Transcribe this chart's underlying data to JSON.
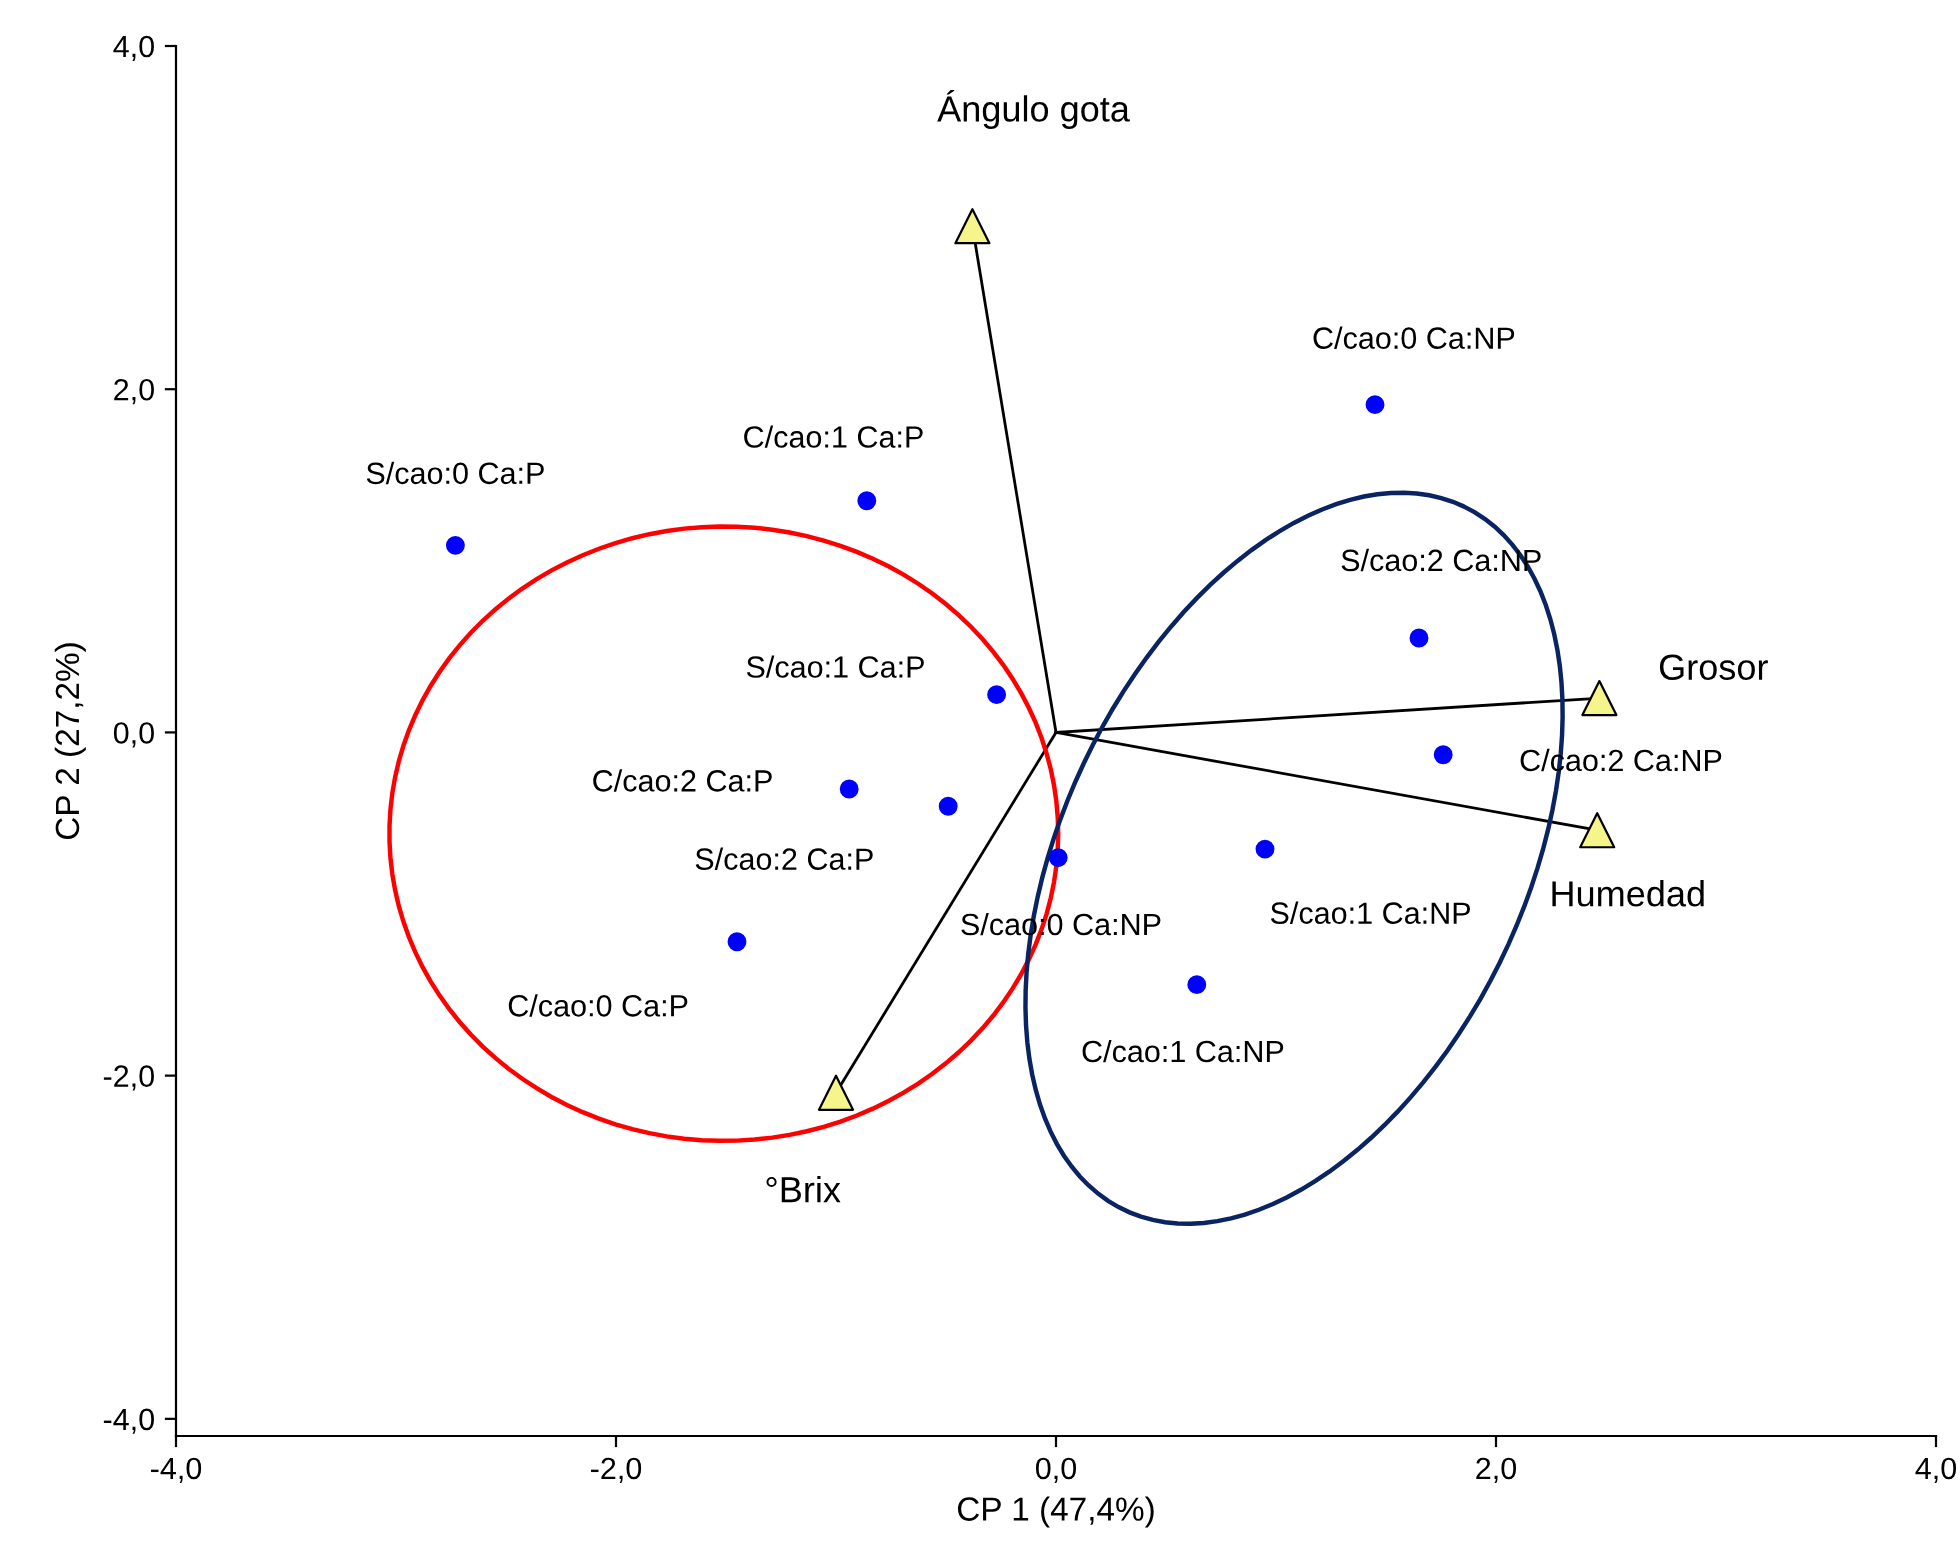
{
  "chart_data": {
    "type": "scatter",
    "xlabel": "CP 1 (47,4%)",
    "ylabel": "CP 2 (27,2%)",
    "xlim": [
      -4,
      4
    ],
    "ylim": [
      -4.1,
      4
    ],
    "xticks": [
      {
        "value": -4,
        "label": "-4,0"
      },
      {
        "value": -2,
        "label": "-2,0"
      },
      {
        "value": 0,
        "label": "0,0"
      },
      {
        "value": 2,
        "label": "2,0"
      },
      {
        "value": 4,
        "label": "4,0"
      }
    ],
    "yticks": [
      {
        "value": -4,
        "label": "-4,0"
      },
      {
        "value": -2,
        "label": "-2,0"
      },
      {
        "value": 0,
        "label": "0,0"
      },
      {
        "value": 2,
        "label": "2,0"
      },
      {
        "value": 4,
        "label": "4,0"
      }
    ],
    "grid": false,
    "legend": false,
    "series": [
      {
        "type": "line",
        "color": "#000000",
        "marker": "none",
        "x": [
          0,
          -0.38
        ],
        "values": [
          0,
          2.95
        ]
      },
      {
        "type": "line",
        "color": "#000000",
        "marker": "none",
        "x": [
          0,
          2.47
        ],
        "values": [
          0,
          0.2
        ]
      },
      {
        "type": "line",
        "color": "#000000",
        "marker": "none",
        "x": [
          0,
          2.46
        ],
        "values": [
          0,
          -0.57
        ]
      },
      {
        "type": "line",
        "color": "#000000",
        "marker": "none",
        "x": [
          0,
          -1.0
        ],
        "values": [
          0,
          -2.1
        ]
      },
      {
        "color": "#0000ff",
        "marker": "circle",
        "x": [
          -2.73,
          -0.86,
          1.45,
          1.65,
          -0.27,
          1.76,
          -0.94,
          -0.49,
          0.01,
          0.95,
          -1.45,
          0.64
        ],
        "values": [
          1.09,
          1.35,
          1.91,
          0.55,
          0.22,
          -0.13,
          -0.33,
          -0.43,
          -0.73,
          -0.68,
          -1.22,
          -1.47
        ]
      },
      {
        "color": "#f5f58c",
        "marker": "triangle",
        "x": [
          -0.38,
          2.47,
          2.46,
          -1.0
        ],
        "values": [
          2.95,
          0.2,
          -0.57,
          -2.1
        ]
      }
    ],
    "annotations": [
      {
        "text": "S/cao:0 Ca:P",
        "x": -2.73,
        "y": 1.09
      },
      {
        "text": "C/cao:1 Ca:P",
        "x": -0.86,
        "y": 1.35
      },
      {
        "text": "C/cao:0 Ca:NP",
        "x": 1.45,
        "y": 1.91
      },
      {
        "text": "S/cao:2 Ca:NP",
        "x": 1.65,
        "y": 0.55
      },
      {
        "text": "S/cao:1 Ca:P",
        "x": -0.27,
        "y": 0.22
      },
      {
        "text": "C/cao:2 Ca:NP",
        "x": 1.76,
        "y": -0.13
      },
      {
        "text": "C/cao:2 Ca:P",
        "x": -0.94,
        "y": -0.33
      },
      {
        "text": "S/cao:2 Ca:P",
        "x": -0.49,
        "y": -0.43
      },
      {
        "text": "S/cao:0 Ca:NP",
        "x": 0.01,
        "y": -0.73
      },
      {
        "text": "S/cao:1 Ca:NP",
        "x": 0.95,
        "y": -0.68
      },
      {
        "text": "C/cao:0 Ca:P",
        "x": -1.45,
        "y": -1.22
      },
      {
        "text": "C/cao:1 Ca:NP",
        "x": 0.64,
        "y": -1.47
      },
      {
        "text": "Ángulo gota",
        "x": -0.38,
        "y": 2.95
      },
      {
        "text": "Grosor",
        "x": 2.47,
        "y": 0.2
      },
      {
        "text": "Humedad",
        "x": 2.46,
        "y": -0.57
      },
      {
        "text": "°Brix",
        "x": -1.0,
        "y": -2.1
      }
    ]
  }
}
